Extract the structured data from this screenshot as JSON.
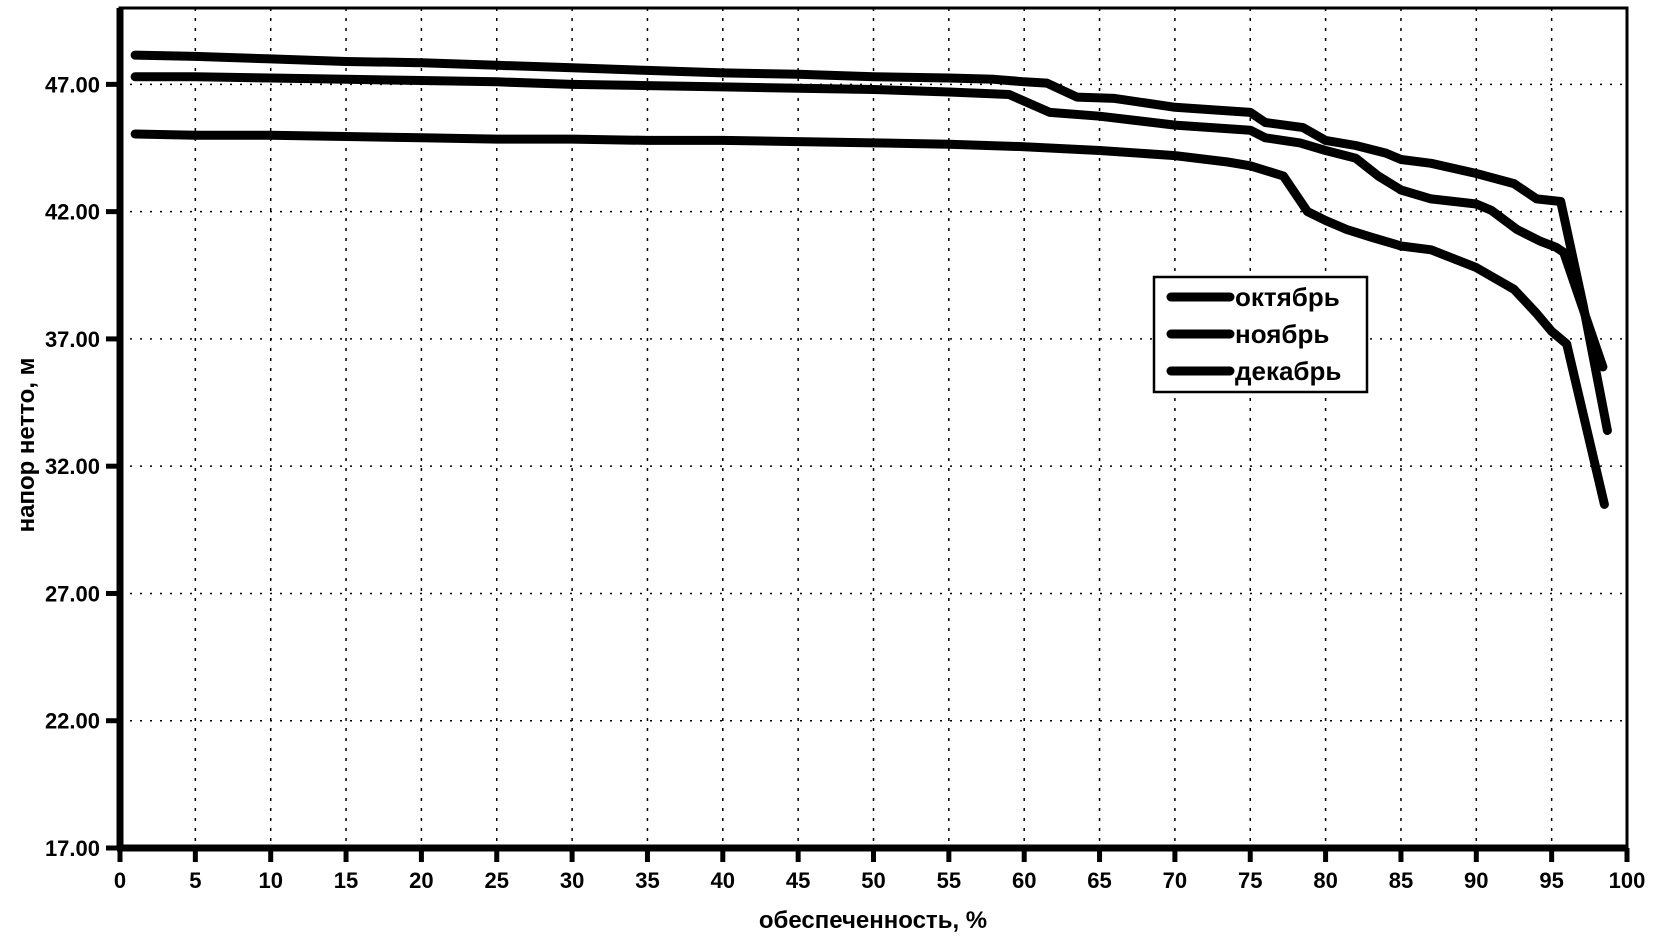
{
  "chart_data": {
    "type": "line",
    "title": "",
    "xlabel": "обеспеченность, %",
    "ylabel": "напор нетто, м",
    "xlim": [
      0,
      100
    ],
    "ylim": [
      17,
      50
    ],
    "grid": "dashed-both-axes",
    "legend_position": "inside-right",
    "line_color": "#000000",
    "background_color": "#ffffff",
    "x_ticks": [
      0,
      5,
      10,
      15,
      20,
      25,
      30,
      35,
      40,
      45,
      50,
      55,
      60,
      65,
      70,
      75,
      80,
      85,
      90,
      95,
      100
    ],
    "y_ticks": [
      {
        "value": 17,
        "label": "17.00"
      },
      {
        "value": 22,
        "label": "22.00"
      },
      {
        "value": 27,
        "label": "27.00"
      },
      {
        "value": 32,
        "label": "32.00"
      },
      {
        "value": 37,
        "label": "37.00"
      },
      {
        "value": 42,
        "label": "42.00"
      },
      {
        "value": 47,
        "label": "47.00"
      }
    ],
    "series": [
      {
        "name": "октябрь",
        "color": "#000000",
        "points": [
          [
            1,
            48.15
          ],
          [
            5,
            48.1
          ],
          [
            10,
            48.0
          ],
          [
            15,
            47.9
          ],
          [
            20,
            47.85
          ],
          [
            25,
            47.75
          ],
          [
            30,
            47.65
          ],
          [
            35,
            47.55
          ],
          [
            40,
            47.45
          ],
          [
            45,
            47.4
          ],
          [
            50,
            47.3
          ],
          [
            55,
            47.25
          ],
          [
            58,
            47.2
          ],
          [
            60,
            47.1
          ],
          [
            61.5,
            47.05
          ],
          [
            63.5,
            46.5
          ],
          [
            66,
            46.45
          ],
          [
            70,
            46.1
          ],
          [
            75,
            45.9
          ],
          [
            76,
            45.5
          ],
          [
            78.5,
            45.3
          ],
          [
            80,
            44.8
          ],
          [
            82,
            44.6
          ],
          [
            84,
            44.3
          ],
          [
            85,
            44.05
          ],
          [
            87,
            43.9
          ],
          [
            90,
            43.5
          ],
          [
            92.5,
            43.1
          ],
          [
            94,
            42.5
          ],
          [
            95.6,
            42.4
          ],
          [
            97.1,
            38.3
          ],
          [
            98.7,
            33.4
          ]
        ]
      },
      {
        "name": "ноябрь",
        "color": "#000000",
        "points": [
          [
            1,
            47.3
          ],
          [
            5,
            47.3
          ],
          [
            10,
            47.25
          ],
          [
            15,
            47.2
          ],
          [
            20,
            47.15
          ],
          [
            25,
            47.1
          ],
          [
            30,
            47.0
          ],
          [
            35,
            46.95
          ],
          [
            40,
            46.9
          ],
          [
            45,
            46.85
          ],
          [
            50,
            46.8
          ],
          [
            55,
            46.7
          ],
          [
            59,
            46.6
          ],
          [
            61.7,
            45.9
          ],
          [
            65,
            45.75
          ],
          [
            70,
            45.4
          ],
          [
            75,
            45.2
          ],
          [
            76,
            44.9
          ],
          [
            78.3,
            44.7
          ],
          [
            80,
            44.4
          ],
          [
            82,
            44.1
          ],
          [
            83.5,
            43.4
          ],
          [
            85,
            42.85
          ],
          [
            87,
            42.5
          ],
          [
            90,
            42.3
          ],
          [
            91,
            42.05
          ],
          [
            92.7,
            41.3
          ],
          [
            94.2,
            40.85
          ],
          [
            95.3,
            40.6
          ],
          [
            95.8,
            40.4
          ],
          [
            98.4,
            35.9
          ]
        ]
      },
      {
        "name": "декабрь",
        "color": "#000000",
        "points": [
          [
            1,
            45.05
          ],
          [
            5,
            45.0
          ],
          [
            10,
            45.0
          ],
          [
            15,
            44.95
          ],
          [
            20,
            44.9
          ],
          [
            25,
            44.85
          ],
          [
            30,
            44.85
          ],
          [
            35,
            44.8
          ],
          [
            40,
            44.8
          ],
          [
            45,
            44.75
          ],
          [
            50,
            44.7
          ],
          [
            55,
            44.65
          ],
          [
            60,
            44.55
          ],
          [
            65,
            44.4
          ],
          [
            70,
            44.2
          ],
          [
            73.5,
            43.95
          ],
          [
            75,
            43.8
          ],
          [
            77.2,
            43.4
          ],
          [
            78.8,
            42.0
          ],
          [
            80,
            41.65
          ],
          [
            81.4,
            41.3
          ],
          [
            83,
            41.0
          ],
          [
            85,
            40.65
          ],
          [
            87,
            40.5
          ],
          [
            90,
            39.8
          ],
          [
            92.5,
            38.95
          ],
          [
            94,
            38.0
          ],
          [
            95,
            37.3
          ],
          [
            96,
            36.8
          ],
          [
            98.5,
            30.5
          ]
        ]
      }
    ]
  }
}
